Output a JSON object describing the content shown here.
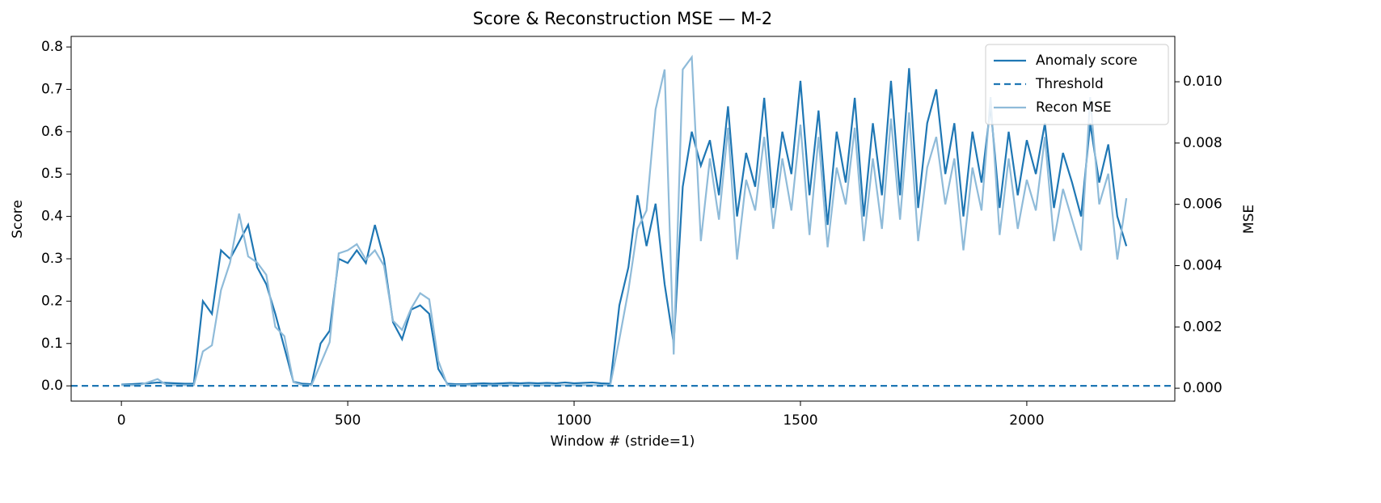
{
  "chart_data": {
    "type": "line",
    "title": "Score & Reconstruction MSE — M-2",
    "xlabel": "Window # (stride=1)",
    "ylabel": "Score",
    "y2label": "MSE",
    "x": [
      0,
      20,
      40,
      60,
      80,
      100,
      120,
      140,
      160,
      180,
      200,
      220,
      240,
      260,
      280,
      300,
      320,
      340,
      360,
      380,
      400,
      420,
      440,
      460,
      480,
      500,
      520,
      540,
      560,
      580,
      600,
      620,
      640,
      660,
      680,
      700,
      720,
      740,
      760,
      780,
      800,
      820,
      840,
      860,
      880,
      900,
      920,
      940,
      960,
      980,
      1000,
      1020,
      1040,
      1060,
      1080,
      1100,
      1120,
      1140,
      1160,
      1180,
      1200,
      1220,
      1240,
      1260,
      1280,
      1300,
      1320,
      1340,
      1360,
      1380,
      1400,
      1420,
      1440,
      1460,
      1480,
      1500,
      1520,
      1540,
      1560,
      1580,
      1600,
      1620,
      1640,
      1660,
      1680,
      1700,
      1720,
      1740,
      1760,
      1780,
      1800,
      1820,
      1840,
      1860,
      1880,
      1900,
      1920,
      1940,
      1960,
      1980,
      2000,
      2020,
      2040,
      2060,
      2080,
      2100,
      2120,
      2140,
      2160,
      2180,
      2200,
      2220
    ],
    "series": [
      {
        "name": "Anomaly score",
        "color": "#1f77b4",
        "axis": "y",
        "values": [
          0.003,
          0.004,
          0.005,
          0.006,
          0.008,
          0.007,
          0.006,
          0.005,
          0.005,
          0.2,
          0.17,
          0.32,
          0.3,
          0.34,
          0.38,
          0.28,
          0.24,
          0.17,
          0.09,
          0.01,
          0.005,
          0.004,
          0.1,
          0.13,
          0.3,
          0.29,
          0.32,
          0.29,
          0.38,
          0.3,
          0.15,
          0.11,
          0.18,
          0.19,
          0.17,
          0.04,
          0.005,
          0.004,
          0.004,
          0.005,
          0.006,
          0.005,
          0.006,
          0.007,
          0.006,
          0.007,
          0.006,
          0.007,
          0.006,
          0.008,
          0.006,
          0.007,
          0.008,
          0.006,
          0.005,
          0.19,
          0.28,
          0.45,
          0.33,
          0.43,
          0.24,
          0.1,
          0.47,
          0.6,
          0.52,
          0.58,
          0.45,
          0.66,
          0.4,
          0.55,
          0.47,
          0.68,
          0.42,
          0.6,
          0.5,
          0.72,
          0.45,
          0.65,
          0.38,
          0.6,
          0.48,
          0.68,
          0.4,
          0.62,
          0.45,
          0.72,
          0.45,
          0.75,
          0.42,
          0.62,
          0.7,
          0.5,
          0.62,
          0.4,
          0.6,
          0.48,
          0.66,
          0.42,
          0.6,
          0.45,
          0.58,
          0.5,
          0.62,
          0.42,
          0.55,
          0.48,
          0.4,
          0.62,
          0.48,
          0.57,
          0.4,
          0.33
        ]
      },
      {
        "name": "Recon MSE",
        "color": "#8fbbd9",
        "axis": "y2",
        "values": [
          0.0001,
          0.0001,
          0.0001,
          0.0002,
          0.0003,
          0.0001,
          0.0001,
          0.0001,
          0.0001,
          0.0012,
          0.0014,
          0.0032,
          0.0041,
          0.0057,
          0.0043,
          0.0041,
          0.0037,
          0.002,
          0.0017,
          0.0002,
          0.0001,
          0.0001,
          0.0008,
          0.0015,
          0.0044,
          0.0045,
          0.0047,
          0.0042,
          0.0045,
          0.004,
          0.0022,
          0.0019,
          0.0026,
          0.0031,
          0.0029,
          0.0009,
          0.0001,
          0.0001,
          0.0001,
          0.0001,
          0.0001,
          0.0001,
          0.0001,
          0.0001,
          0.0001,
          0.0001,
          0.0001,
          0.0001,
          0.0001,
          0.0001,
          0.0001,
          0.0001,
          0.0001,
          0.0001,
          0.0001,
          0.0016,
          0.0032,
          0.0052,
          0.0058,
          0.0091,
          0.0104,
          0.0011,
          0.0104,
          0.0108,
          0.0048,
          0.0075,
          0.0055,
          0.0085,
          0.0042,
          0.0068,
          0.0058,
          0.0082,
          0.0052,
          0.0075,
          0.0058,
          0.0086,
          0.005,
          0.0082,
          0.0046,
          0.0072,
          0.006,
          0.0085,
          0.0048,
          0.0075,
          0.0052,
          0.0088,
          0.0055,
          0.009,
          0.0048,
          0.0072,
          0.0082,
          0.006,
          0.0075,
          0.0045,
          0.0072,
          0.0058,
          0.0095,
          0.005,
          0.0075,
          0.0052,
          0.0068,
          0.0058,
          0.0082,
          0.0048,
          0.0065,
          0.0055,
          0.0045,
          0.0095,
          0.006,
          0.007,
          0.0042,
          0.0062
        ]
      }
    ],
    "hlines": [
      {
        "name": "Threshold",
        "value": 0,
        "color": "#1f77b4",
        "dashed": true
      }
    ],
    "xlim": [
      -111,
      2327
    ],
    "xticks": [
      0,
      500,
      1000,
      1500,
      2000
    ],
    "ylim": [
      -0.036,
      0.825
    ],
    "yticks": [
      {
        "value": 0,
        "label": "0.0"
      },
      0.1,
      0.2,
      0.3,
      0.4,
      0.5,
      0.6,
      0.7,
      0.8
    ],
    "y2lim": [
      -0.00042,
      0.01148
    ],
    "y2ticks": [
      {
        "value": 0,
        "label": "0.000"
      },
      {
        "value": 0.002,
        "label": "0.002"
      },
      {
        "value": 0.004,
        "label": "0.004"
      },
      {
        "value": 0.006,
        "label": "0.006"
      },
      {
        "value": 0.008,
        "label": "0.008"
      },
      {
        "value": 0.01,
        "label": "0.010"
      }
    ],
    "legend": "upper right"
  }
}
